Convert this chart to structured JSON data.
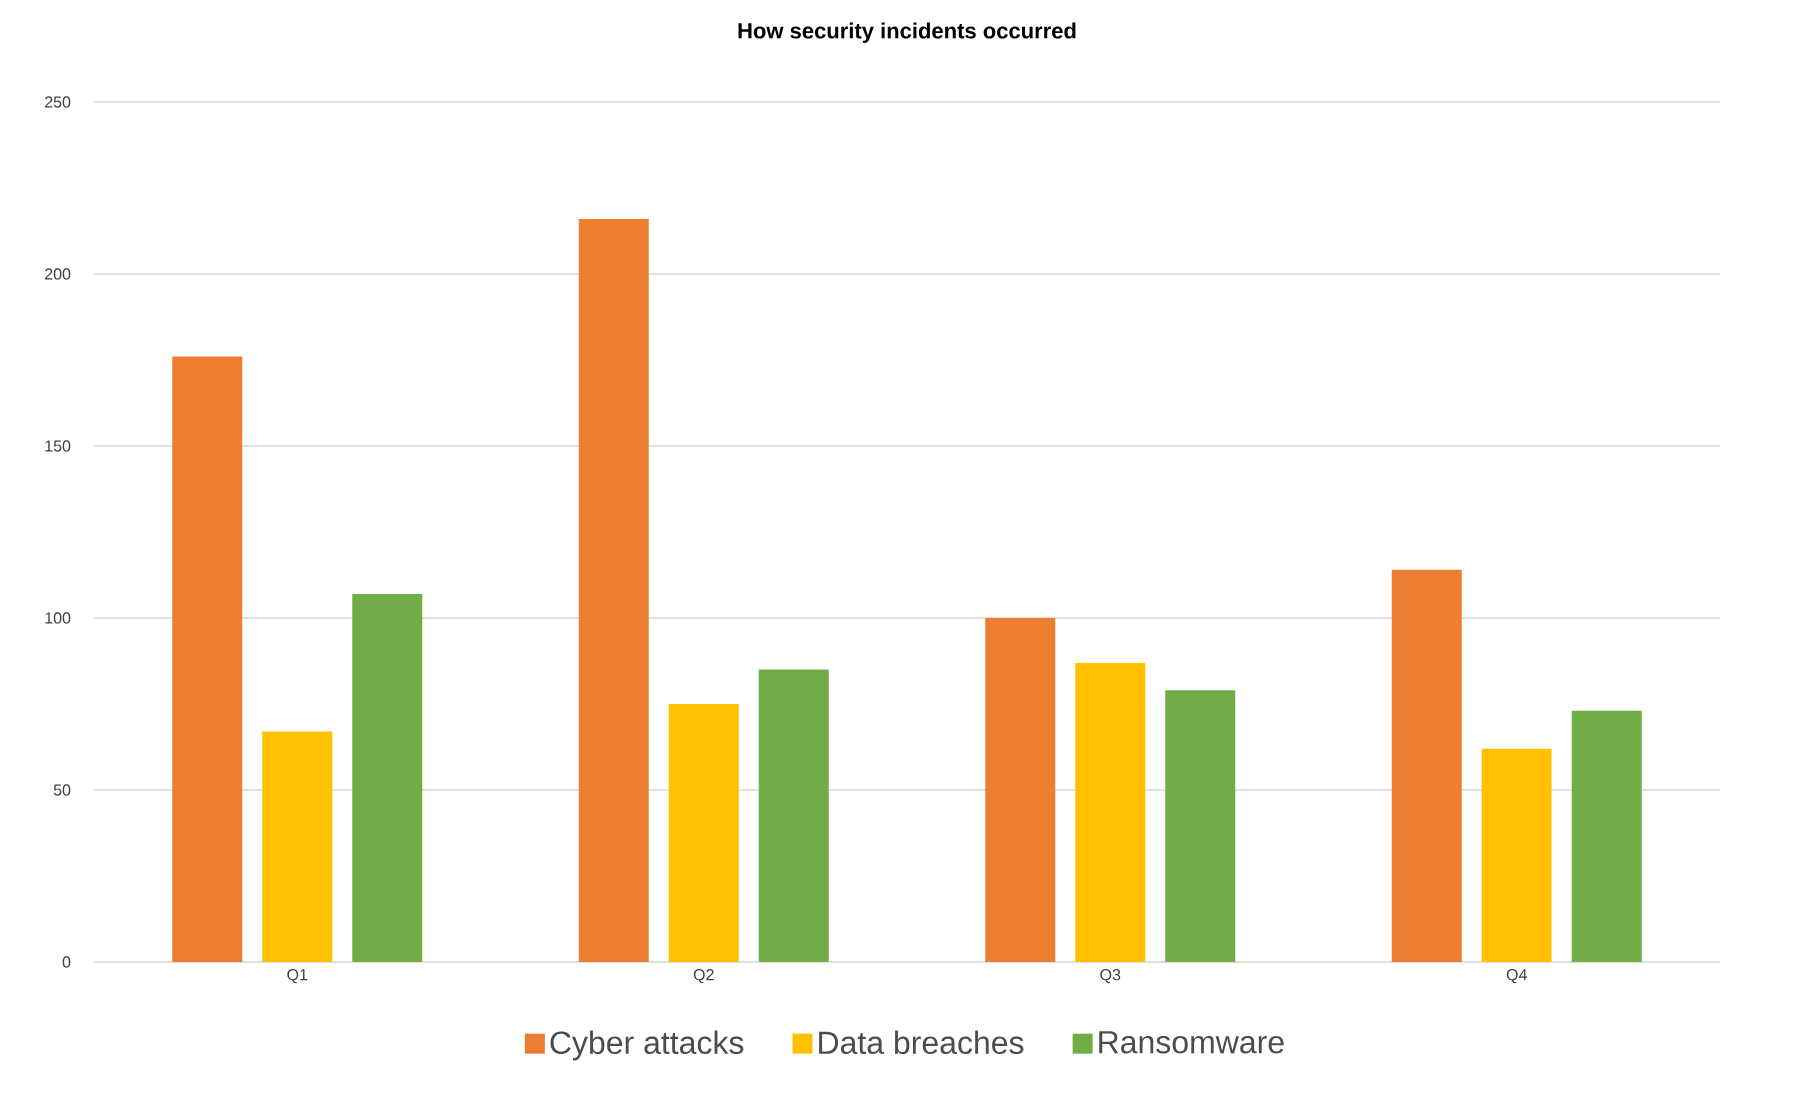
{
  "chart_data": {
    "type": "bar",
    "title": "How security incidents occurred",
    "categories": [
      "Q1",
      "Q2",
      "Q3",
      "Q4"
    ],
    "series": [
      {
        "name": "Cyber attacks",
        "color": "#ed7d31",
        "values": [
          176,
          216,
          100,
          114
        ]
      },
      {
        "name": "Data breaches",
        "color": "#ffc000",
        "values": [
          67,
          75,
          87,
          62
        ]
      },
      {
        "name": "Ransomware",
        "color": "#70ad47",
        "values": [
          107,
          85,
          79,
          73
        ]
      }
    ],
    "ylim": [
      0,
      250
    ],
    "yticks": [
      0,
      50,
      100,
      150,
      200,
      250
    ],
    "grid": "y",
    "legend": "bottom"
  }
}
